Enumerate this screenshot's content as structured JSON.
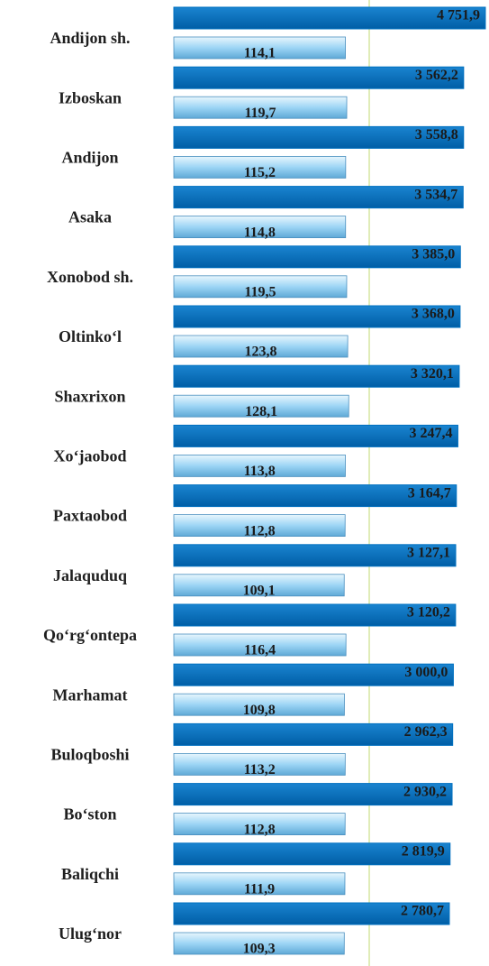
{
  "chart_data": {
    "type": "bar",
    "orientation": "horizontal",
    "categories": [
      "Andijon sh.",
      "Izboskan",
      "Andijon",
      "Asaka",
      "Xonobod sh.",
      "Oltinko‘l",
      "Shaxrixon",
      "Xo‘jaobod",
      "Paxtaobod",
      "Jalaquduq",
      "Qo‘rg‘ontepa",
      "Marhamat",
      "Buloqboshi",
      "Bo‘ston",
      "Baliqchi",
      "Ulug‘nor"
    ],
    "series": [
      {
        "color": "#0070c0",
        "axis": "x",
        "values": [
          4751.9,
          3562.2,
          3558.8,
          3534.7,
          3385.0,
          3368.0,
          3320.1,
          3247.4,
          3164.7,
          3127.1,
          3120.2,
          3000.0,
          2962.3,
          2930.2,
          2819.9,
          2780.7
        ],
        "value_labels": [
          "4 751,9",
          "3 562,2",
          "3 558,8",
          "3 534,7",
          "3 385,0",
          "3 368,0",
          "3 320,1",
          "3 247,4",
          "3 164,7",
          "3 127,1",
          "3 120,2",
          "3 000,0",
          "2 962,3",
          "2 930,2",
          "2 819,9",
          "2 780,7"
        ]
      },
      {
        "color": "#9dd5f5",
        "axis": "x2",
        "values": [
          114.1,
          119.7,
          115.2,
          114.8,
          119.5,
          123.8,
          128.1,
          113.8,
          112.8,
          109.1,
          116.4,
          109.8,
          113.2,
          112.8,
          111.9,
          109.3
        ],
        "value_labels": [
          "114,1",
          "119,7",
          "115,2",
          "114,8",
          "119,5",
          "123,8",
          "128,1",
          "113,8",
          "112,8",
          "109,1",
          "116,4",
          "109,8",
          "113,2",
          "112,8",
          "111,9",
          "109,3"
        ]
      }
    ],
    "xlim": [
      -12300,
      4950
    ],
    "x2lim": [
      -610,
      720
    ]
  }
}
